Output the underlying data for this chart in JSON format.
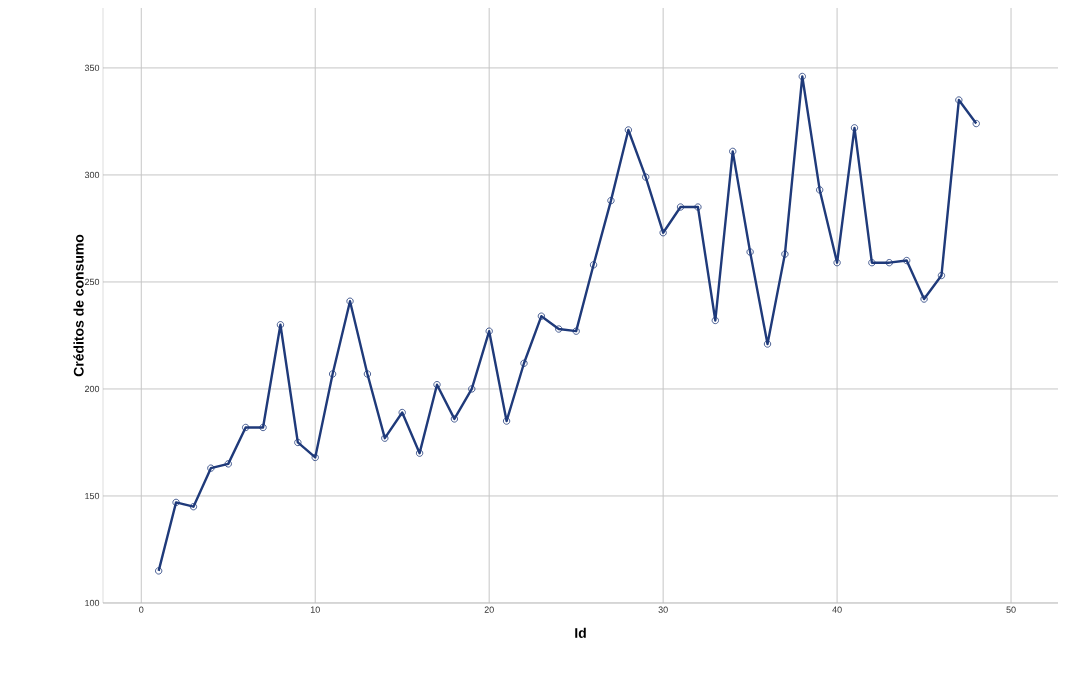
{
  "chart_data": {
    "type": "line",
    "xlabel": "Id",
    "ylabel": "Créditos de consumo",
    "x": [
      1,
      2,
      3,
      4,
      5,
      6,
      7,
      8,
      9,
      10,
      11,
      12,
      13,
      14,
      15,
      16,
      17,
      18,
      19,
      20,
      21,
      22,
      23,
      24,
      25,
      26,
      27,
      28,
      29,
      30,
      31,
      32,
      33,
      34,
      35,
      36,
      37,
      38,
      39,
      40,
      41,
      42,
      43,
      44,
      45,
      46,
      47,
      48
    ],
    "series": [
      {
        "color": "#1f3a7a",
        "values": [
          115,
          147,
          145,
          163,
          165,
          182,
          182,
          230,
          175,
          168,
          207,
          241,
          207,
          177,
          189,
          170,
          202,
          186,
          200,
          227,
          185,
          212,
          234,
          228,
          227,
          258,
          288,
          321,
          299,
          273,
          285,
          285,
          232,
          311,
          264,
          221,
          263,
          346,
          293,
          259,
          322,
          259,
          259,
          260,
          242,
          253,
          335,
          324
        ]
      }
    ],
    "xlim": [
      -2.2,
      52.7
    ],
    "ylim": [
      100,
      378
    ],
    "xticks": [
      0,
      10,
      20,
      30,
      40,
      50
    ],
    "yticks": [
      100,
      150,
      200,
      250,
      300,
      350
    ],
    "grid": true,
    "marker": "circle",
    "line_style": "solid"
  }
}
